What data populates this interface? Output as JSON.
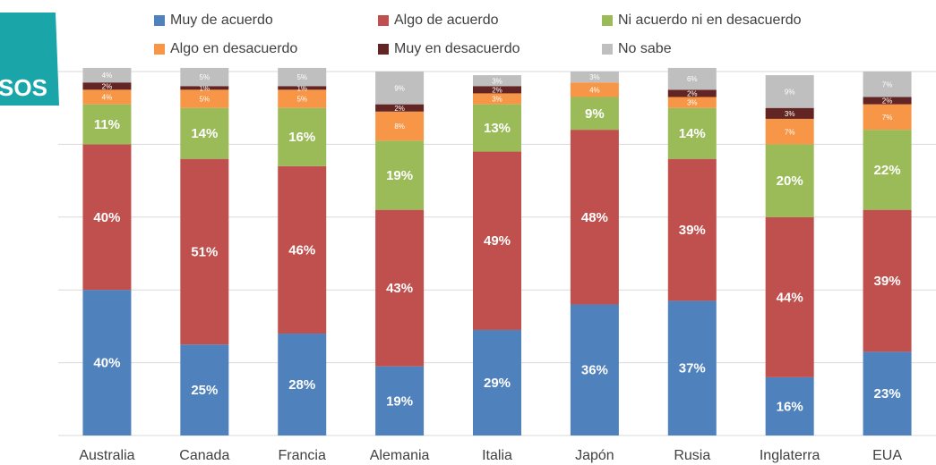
{
  "logo_text": "SOS",
  "chart_data": {
    "type": "stacked_bar",
    "categories": [
      "Australia",
      "Canada",
      "Francia",
      "Alemania",
      "Italia",
      "Japón",
      "Rusia",
      "Inglaterra",
      "EUA"
    ],
    "ylim": [
      0,
      100
    ],
    "yticks": [
      0,
      20,
      40,
      60,
      80,
      100
    ],
    "grid": true,
    "legend": "top",
    "series": [
      {
        "name": "Muy de acuerdo",
        "color": "#4f81bd",
        "values": [
          40,
          25,
          28,
          19,
          29,
          36,
          37,
          16,
          23
        ],
        "value_labels": [
          "40%",
          "25%",
          "28%",
          "19%",
          "29%",
          "36%",
          "37%",
          "16%",
          "23%"
        ]
      },
      {
        "name": "Algo de acuerdo",
        "color": "#c0504d",
        "values": [
          40,
          51,
          46,
          43,
          49,
          48,
          39,
          44,
          39
        ],
        "value_labels": [
          "40%",
          "51%",
          "46%",
          "43%",
          "49%",
          "48%",
          "39%",
          "44%",
          "39%"
        ]
      },
      {
        "name": "Ni acuerdo ni en desacuerdo",
        "color": "#9bbb59",
        "values": [
          11,
          14,
          16,
          19,
          13,
          9,
          14,
          20,
          22
        ],
        "value_labels": [
          "11%",
          "14%",
          "16%",
          "19%",
          "13%",
          "9%",
          "14%",
          "20%",
          "22%"
        ]
      },
      {
        "name": "Algo en desacuerdo",
        "color": "#f79646",
        "values": [
          4,
          5,
          5,
          8,
          3,
          4,
          3,
          7,
          7
        ],
        "value_labels": [
          "4%",
          "5%",
          "5%",
          "8%",
          "3%",
          "4%",
          "3%",
          "7%",
          "7%"
        ]
      },
      {
        "name": "Muy en desacuerdo",
        "color": "#632523",
        "values": [
          2,
          1,
          1,
          2,
          2,
          null,
          2,
          3,
          2
        ],
        "value_labels": [
          "2%",
          "1%",
          "1%",
          "2%",
          "2%",
          null,
          "2%",
          "3%",
          "2%"
        ]
      },
      {
        "name": "No sabe",
        "color": "#bfbfbf",
        "values": [
          4,
          5,
          5,
          9,
          3,
          3,
          6,
          9,
          7
        ],
        "value_labels": [
          "4%",
          "5%",
          "5%",
          "9%",
          "3%",
          "3%",
          "6%",
          "9%",
          "7%"
        ]
      }
    ]
  }
}
